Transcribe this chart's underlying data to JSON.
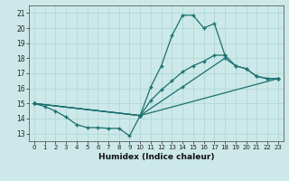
{
  "xlabel": "Humidex (Indice chaleur)",
  "xlim": [
    -0.5,
    23.5
  ],
  "ylim": [
    12.5,
    21.5
  ],
  "xticks": [
    0,
    1,
    2,
    3,
    4,
    5,
    6,
    7,
    8,
    9,
    10,
    11,
    12,
    13,
    14,
    15,
    16,
    17,
    18,
    19,
    20,
    21,
    22,
    23
  ],
  "yticks": [
    13,
    14,
    15,
    16,
    17,
    18,
    19,
    20,
    21
  ],
  "bg_color": "#cce8e8",
  "line_color": "#1a7070",
  "grid_color": "#aad4d4",
  "line1_x": [
    0,
    1,
    2,
    3,
    4,
    5,
    6,
    7,
    8,
    9,
    10,
    11,
    12,
    13,
    14,
    15,
    16,
    17,
    18
  ],
  "line1_y": [
    15.0,
    14.8,
    14.5,
    14.1,
    13.6,
    13.4,
    13.4,
    13.35,
    13.35,
    12.85,
    14.2,
    16.1,
    17.5,
    19.5,
    20.85,
    20.85,
    20.0,
    20.3,
    18.2
  ],
  "line2_x": [
    0,
    10,
    11,
    12,
    13,
    14,
    15,
    16,
    17,
    18,
    19,
    20,
    21,
    22,
    23
  ],
  "line2_y": [
    15.0,
    14.2,
    15.2,
    15.9,
    16.5,
    17.1,
    17.5,
    17.8,
    18.2,
    18.2,
    17.5,
    17.3,
    16.8,
    16.65,
    16.65
  ],
  "line3_x": [
    0,
    10,
    14,
    18,
    19,
    20,
    21,
    22,
    23
  ],
  "line3_y": [
    15.0,
    14.2,
    16.1,
    18.0,
    17.5,
    17.3,
    16.8,
    16.65,
    16.65
  ],
  "line4_x": [
    0,
    10,
    23
  ],
  "line4_y": [
    15.0,
    14.2,
    16.65
  ]
}
